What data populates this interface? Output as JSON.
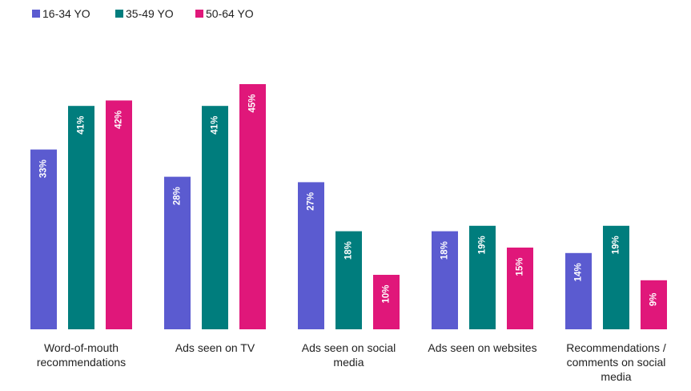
{
  "chart_data": {
    "type": "bar",
    "categories": [
      [
        "Word-of-mouth",
        "recommendations"
      ],
      [
        "Ads seen on TV"
      ],
      [
        "Ads seen on social",
        "media"
      ],
      [
        "Ads seen on websites"
      ],
      [
        "Recommendations /",
        "comments on social",
        "media"
      ]
    ],
    "series": [
      {
        "name": "16-34 YO",
        "color": "#5b5bd0",
        "values": [
          33,
          28,
          27,
          18,
          14
        ],
        "labels": [
          "33%",
          "28%",
          "27%",
          "18%",
          "14%"
        ]
      },
      {
        "name": "35-49 YO",
        "color": "#007d7d",
        "values": [
          41,
          41,
          18,
          19,
          19
        ],
        "labels": [
          "41%",
          "41%",
          "18%",
          "19%",
          "19%"
        ]
      },
      {
        "name": "50-64 YO",
        "color": "#e0177a",
        "values": [
          42,
          45,
          10,
          15,
          9
        ],
        "labels": [
          "42%",
          "45%",
          "10%",
          "15%",
          "9%"
        ]
      }
    ],
    "ylim": [
      0,
      45
    ],
    "legend": "top-left",
    "grid": false,
    "title": "",
    "xlabel": "",
    "ylabel": ""
  }
}
